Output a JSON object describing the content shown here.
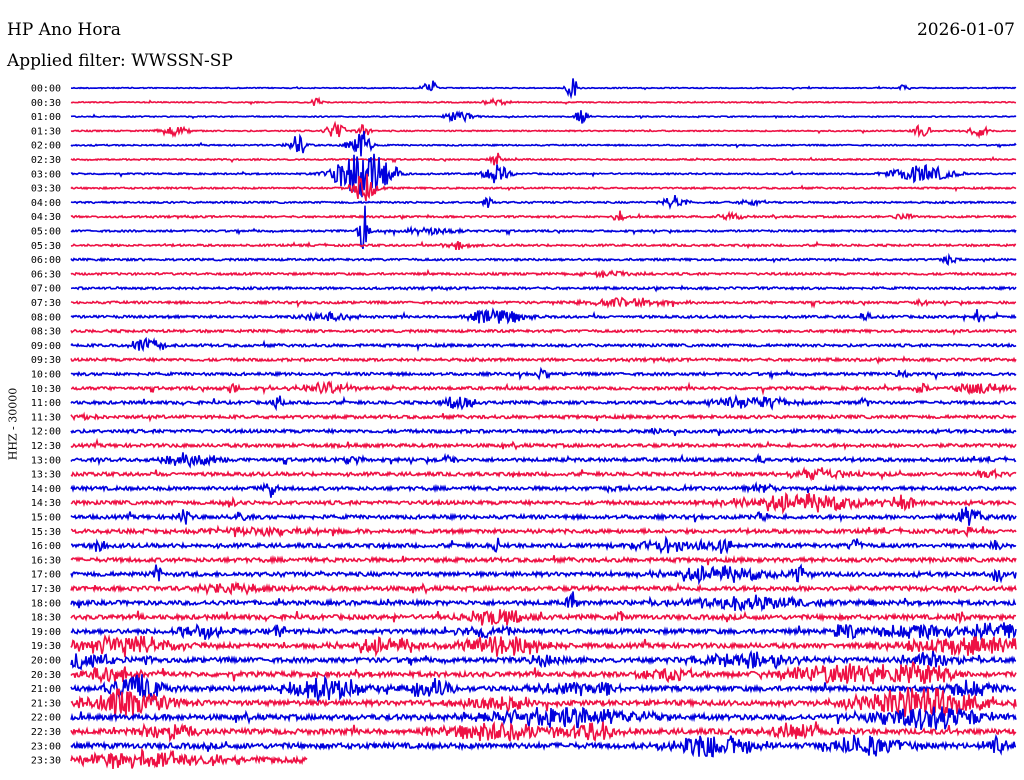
{
  "header": {
    "station": "HP Ano Hora",
    "date": "2026-01-07",
    "filter": "Applied filter: WWSSN-SP"
  },
  "colors": {
    "blue": "#0000dd",
    "red": "#ee1144"
  },
  "chart_data": {
    "type": "line",
    "ylabel": "HHZ - 30000",
    "hours": [
      "00:00",
      "00:30",
      "01:00",
      "01:30",
      "02:00",
      "02:30",
      "03:00",
      "03:30",
      "04:00",
      "04:30",
      "05:00",
      "05:30",
      "06:00",
      "06:30",
      "07:00",
      "07:30",
      "08:00",
      "08:30",
      "09:00",
      "09:30",
      "10:00",
      "10:30",
      "11:00",
      "11:30",
      "12:00",
      "12:30",
      "13:00",
      "13:30",
      "14:00",
      "14:30",
      "15:00",
      "15:30",
      "16:00",
      "16:30",
      "17:00",
      "17:30",
      "18:00",
      "18:30",
      "19:00",
      "19:30",
      "20:00",
      "20:30",
      "21:00",
      "21:30",
      "22:00",
      "22:30",
      "23:00",
      "23:30"
    ],
    "trace_color_cycle": [
      "blue",
      "red"
    ],
    "last_trace_end_fraction": 0.25,
    "grid": false,
    "legend": "none"
  }
}
